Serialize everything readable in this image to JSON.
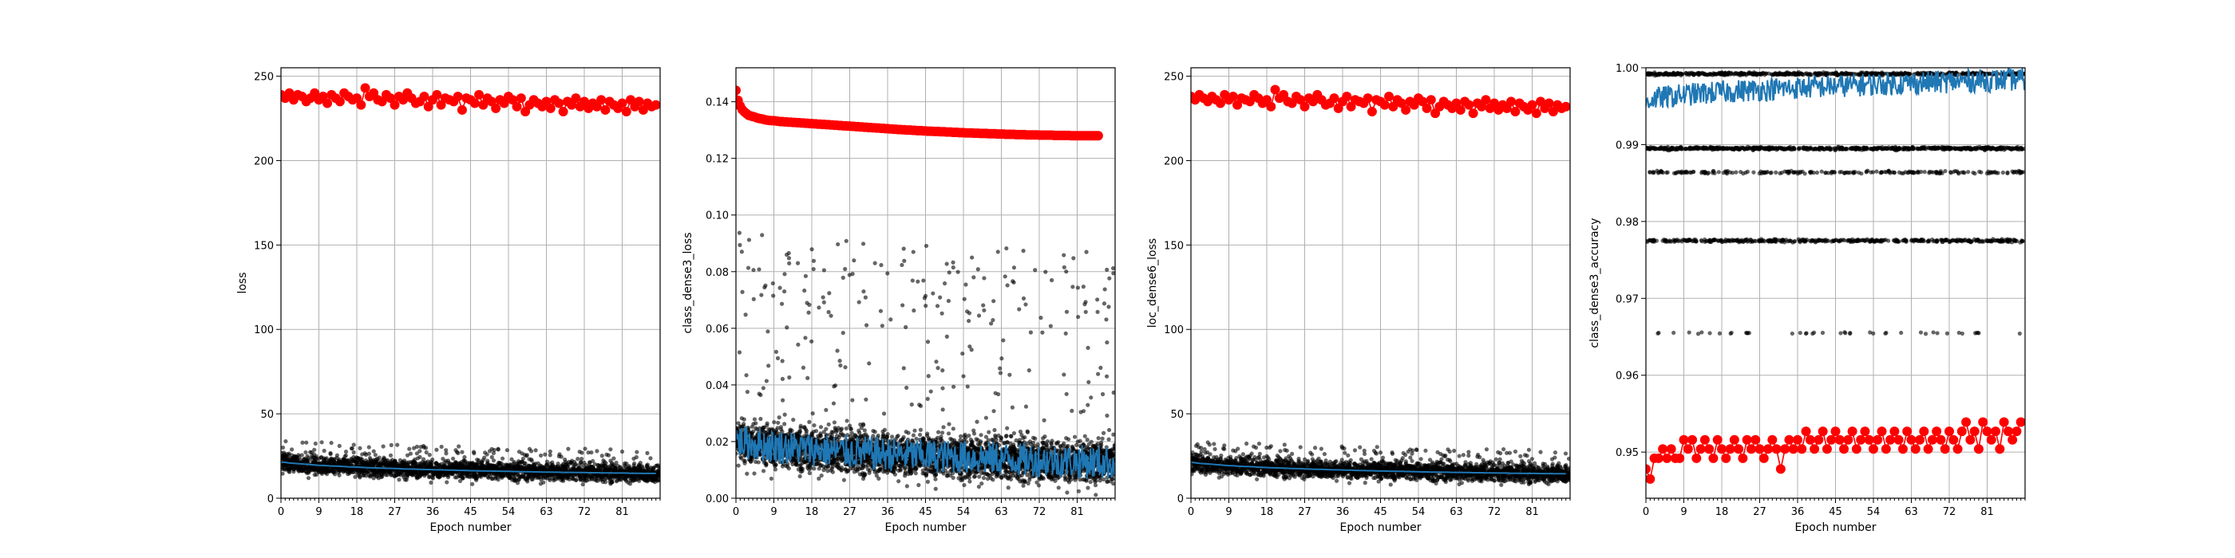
{
  "chart_data": [
    {
      "type": "scatter",
      "xlabel": "Epoch number",
      "ylabel": "loss",
      "xlim": [
        0,
        90
      ],
      "ylim": [
        0,
        255
      ],
      "xticks": [
        0,
        9,
        18,
        27,
        36,
        45,
        54,
        63,
        72,
        81
      ],
      "yticks": [
        0,
        50,
        100,
        150,
        200,
        250
      ],
      "grid": true,
      "series": [
        {
          "role": "validation",
          "color": "#ff0000",
          "style": "line-markers",
          "x_start": 0,
          "x_step": 1,
          "values": [
            239,
            237,
            240,
            236,
            239,
            238,
            235,
            237,
            240,
            236,
            238,
            234,
            239,
            237,
            235,
            240,
            238,
            236,
            237,
            233,
            243,
            238,
            240,
            236,
            235,
            239,
            237,
            233,
            238,
            236,
            240,
            237,
            234,
            235,
            238,
            232,
            236,
            239,
            233,
            237,
            236,
            235,
            238,
            230,
            237,
            236,
            234,
            239,
            233,
            237,
            235,
            231,
            236,
            234,
            238,
            236,
            232,
            237,
            229,
            233,
            236,
            234,
            232,
            235,
            231,
            236,
            234,
            229,
            235,
            233,
            237,
            232,
            235,
            231,
            234,
            232,
            236,
            230,
            235,
            233,
            231,
            234,
            229,
            236,
            232,
            235,
            230,
            234,
            232,
            233
          ]
        },
        {
          "role": "training-mean",
          "color": "#1f77b4",
          "style": "line",
          "x_start": 0,
          "x_step": 1,
          "values": [
            21.5,
            21.2,
            20.9,
            20.7,
            20.5,
            20.3,
            20.1,
            19.9,
            19.7,
            19.5,
            19.4,
            19.2,
            19.1,
            19.0,
            18.9,
            18.8,
            18.6,
            18.5,
            18.4,
            18.3,
            18.2,
            18.1,
            18.0,
            17.9,
            17.8,
            17.7,
            17.7,
            17.6,
            17.5,
            17.4,
            17.3,
            17.3,
            17.2,
            17.1,
            17.0,
            17.0,
            16.9,
            16.8,
            16.8,
            16.7,
            16.6,
            16.6,
            16.5,
            16.5,
            16.4,
            16.3,
            16.3,
            16.2,
            16.2,
            16.1,
            16.1,
            16.0,
            16.0,
            15.9,
            15.9,
            15.8,
            15.8,
            15.7,
            15.7,
            15.7,
            15.6,
            15.6,
            15.5,
            15.5,
            15.5,
            15.4,
            15.4,
            15.3,
            15.3,
            15.3,
            15.2,
            15.2,
            15.2,
            15.1,
            15.1,
            15.1,
            15.0,
            15.0,
            15.0,
            14.9,
            14.9,
            14.9,
            14.9,
            14.8,
            14.8,
            14.8,
            14.7,
            14.7,
            14.7,
            14.7
          ]
        },
        {
          "role": "training-batches",
          "color": "#000000",
          "style": "scatter",
          "center": [
            21.5,
            14.7
          ],
          "spread": 6.5,
          "outliers_up": 14,
          "points_per_epoch": 30
        }
      ]
    },
    {
      "type": "scatter",
      "xlabel": "Epoch number",
      "ylabel": "class_dense3_loss",
      "xlim": [
        0,
        90
      ],
      "ylim": [
        0,
        0.152
      ],
      "xticks": [
        0,
        9,
        18,
        27,
        36,
        45,
        54,
        63,
        72,
        81
      ],
      "yticks": [
        0.0,
        0.02,
        0.04,
        0.06,
        0.08,
        0.1,
        0.12,
        0.14
      ],
      "ytick_labels": [
        "0.00",
        "0.02",
        "0.04",
        "0.06",
        "0.08",
        "0.10",
        "0.12",
        "0.14"
      ],
      "grid": true,
      "series": [
        {
          "role": "validation",
          "color": "#ff0000",
          "style": "line-markers",
          "x_start": 0,
          "x_step": 0.5,
          "values": [
            0.144,
            0.1405,
            0.1385,
            0.1372,
            0.1364,
            0.1358,
            0.1352,
            0.135,
            0.1348,
            0.1346,
            0.1343,
            0.1341,
            0.134,
            0.1338,
            0.1336,
            0.1335,
            0.1334,
            0.1333,
            0.1333,
            0.1332,
            0.1331,
            0.133,
            0.133,
            0.1329,
            0.1329,
            0.1328,
            0.1328,
            0.1327,
            0.1327,
            0.1326,
            0.1326,
            0.1325,
            0.1325,
            0.1324,
            0.1324,
            0.1323,
            0.1323,
            0.1322,
            0.1322,
            0.1321,
            0.1321,
            0.132,
            0.132,
            0.1319,
            0.1319,
            0.1318,
            0.1318,
            0.1317,
            0.1317,
            0.1316,
            0.1316,
            0.1315,
            0.1315,
            0.1314,
            0.1314,
            0.1313,
            0.1313,
            0.1312,
            0.1312,
            0.1311,
            0.1311,
            0.131,
            0.131,
            0.1309,
            0.1309,
            0.1308,
            0.1308,
            0.1307,
            0.1307,
            0.1306,
            0.1306,
            0.1305,
            0.1305,
            0.1304,
            0.1304,
            0.1303,
            0.1303,
            0.1302,
            0.1302,
            0.1301,
            0.1301,
            0.13,
            0.13,
            0.13,
            0.1299,
            0.1299,
            0.1298,
            0.1298,
            0.1298,
            0.1297,
            0.1297,
            0.1296,
            0.1296,
            0.1296,
            0.1295,
            0.1295,
            0.1295,
            0.1294,
            0.1294,
            0.1294,
            0.1293,
            0.1293,
            0.1293,
            0.1292,
            0.1292,
            0.1292,
            0.1291,
            0.1291,
            0.1291,
            0.129,
            0.129,
            0.129,
            0.129,
            0.1289,
            0.1289,
            0.1289,
            0.1288,
            0.1288,
            0.1288,
            0.1288,
            0.1287,
            0.1287,
            0.1287,
            0.1287,
            0.1286,
            0.1286,
            0.1286,
            0.1286,
            0.1285,
            0.1285,
            0.1285,
            0.1285,
            0.1285,
            0.1284,
            0.1284,
            0.1284,
            0.1284,
            0.1284,
            0.1283,
            0.1283,
            0.1283,
            0.1283,
            0.1283,
            0.1283,
            0.1282,
            0.1282,
            0.1282,
            0.1282,
            0.1282,
            0.1282,
            0.1282,
            0.1281,
            0.1281,
            0.1281,
            0.1281,
            0.1281,
            0.1281,
            0.1281,
            0.1281,
            0.128,
            0.128,
            0.128,
            0.128,
            0.128,
            0.128,
            0.128,
            0.128,
            0.128,
            0.128,
            0.128,
            0.128,
            0.128,
            0.128
          ]
        },
        {
          "role": "training-mean",
          "color": "#1f77b4",
          "style": "jagged-line",
          "x_start": 0,
          "x_step": 0.5,
          "start": 0.021,
          "end": 0.0125,
          "oscillation": 0.006
        },
        {
          "role": "training-batches",
          "color": "#000000",
          "style": "scatter",
          "center": [
            0.021,
            0.0125
          ],
          "spread": 0.009,
          "outliers_up": 0.075,
          "points_per_epoch": 45
        }
      ]
    },
    {
      "type": "scatter",
      "xlabel": "Epoch number",
      "ylabel": "loc_dense6_loss",
      "xlim": [
        0,
        90
      ],
      "ylim": [
        0,
        255
      ],
      "xticks": [
        0,
        9,
        18,
        27,
        36,
        45,
        54,
        63,
        72,
        81
      ],
      "yticks": [
        0,
        50,
        100,
        150,
        200,
        250
      ],
      "grid": true,
      "series": [
        {
          "role": "validation",
          "color": "#ff0000",
          "style": "line-markers",
          "x_start": 0,
          "x_step": 1,
          "values": [
            238,
            236,
            239,
            237,
            235,
            238,
            236,
            234,
            239,
            236,
            238,
            233,
            237,
            236,
            235,
            239,
            237,
            234,
            236,
            232,
            242,
            237,
            239,
            235,
            234,
            238,
            236,
            232,
            237,
            235,
            239,
            236,
            233,
            234,
            237,
            231,
            235,
            238,
            232,
            236,
            235,
            234,
            237,
            229,
            236,
            235,
            233,
            238,
            232,
            236,
            234,
            230,
            235,
            233,
            237,
            235,
            231,
            236,
            228,
            232,
            235,
            233,
            231,
            234,
            230,
            235,
            233,
            228,
            234,
            232,
            236,
            231,
            234,
            230,
            233,
            231,
            235,
            229,
            234,
            232,
            230,
            233,
            228,
            235,
            231,
            234,
            229,
            233,
            231,
            232
          ]
        },
        {
          "role": "training-mean",
          "color": "#1f77b4",
          "style": "line",
          "x_start": 0,
          "x_step": 1,
          "values": [
            21.3,
            21.0,
            20.7,
            20.5,
            20.3,
            20.1,
            19.9,
            19.7,
            19.5,
            19.3,
            19.2,
            19.0,
            18.9,
            18.8,
            18.7,
            18.6,
            18.4,
            18.3,
            18.2,
            18.1,
            18.0,
            17.9,
            17.8,
            17.7,
            17.6,
            17.5,
            17.5,
            17.4,
            17.3,
            17.2,
            17.1,
            17.1,
            17.0,
            16.9,
            16.8,
            16.8,
            16.7,
            16.6,
            16.6,
            16.5,
            16.4,
            16.4,
            16.3,
            16.3,
            16.2,
            16.1,
            16.1,
            16.0,
            16.0,
            15.9,
            15.9,
            15.8,
            15.8,
            15.7,
            15.7,
            15.6,
            15.6,
            15.5,
            15.5,
            15.5,
            15.4,
            15.4,
            15.3,
            15.3,
            15.3,
            15.2,
            15.2,
            15.1,
            15.1,
            15.1,
            15.0,
            15.0,
            15.0,
            14.9,
            14.9,
            14.9,
            14.8,
            14.8,
            14.8,
            14.7,
            14.7,
            14.7,
            14.7,
            14.6,
            14.6,
            14.6,
            14.5,
            14.5,
            14.5,
            14.5
          ]
        },
        {
          "role": "training-batches",
          "color": "#000000",
          "style": "scatter",
          "center": [
            21.3,
            14.5
          ],
          "spread": 6.5,
          "outliers_up": 14,
          "points_per_epoch": 30
        }
      ]
    },
    {
      "type": "scatter",
      "xlabel": "Epoch number",
      "ylabel": "class_dense3_accuracy",
      "xlim": [
        0,
        90
      ],
      "ylim": [
        0.944,
        1.0
      ],
      "xticks": [
        0,
        9,
        18,
        27,
        36,
        45,
        54,
        63,
        72,
        81
      ],
      "yticks": [
        0.95,
        0.96,
        0.97,
        0.98,
        0.99,
        1.0
      ],
      "ytick_labels": [
        "0.95",
        "0.96",
        "0.97",
        "0.98",
        "0.99",
        "1.00"
      ],
      "grid": true,
      "series": [
        {
          "role": "validation",
          "color": "#ff0000",
          "style": "line-markers",
          "x_start": 0,
          "x_step": 1,
          "values": [
            0.9478,
            0.9465,
            0.9492,
            0.9492,
            0.9504,
            0.9492,
            0.9504,
            0.9492,
            0.9492,
            0.9516,
            0.9504,
            0.9516,
            0.9492,
            0.9504,
            0.9516,
            0.9504,
            0.9492,
            0.9516,
            0.9504,
            0.9492,
            0.9504,
            0.9516,
            0.9504,
            0.9492,
            0.9516,
            0.9504,
            0.9516,
            0.9504,
            0.9492,
            0.9504,
            0.9516,
            0.9504,
            0.9478,
            0.9504,
            0.9516,
            0.9504,
            0.9516,
            0.9504,
            0.9527,
            0.9516,
            0.9504,
            0.9516,
            0.9527,
            0.9504,
            0.9516,
            0.9527,
            0.9516,
            0.9504,
            0.9516,
            0.9527,
            0.9504,
            0.9516,
            0.9527,
            0.9516,
            0.9504,
            0.9516,
            0.9527,
            0.9504,
            0.9516,
            0.9527,
            0.9516,
            0.9504,
            0.9527,
            0.9516,
            0.9504,
            0.9516,
            0.9527,
            0.9504,
            0.9516,
            0.9527,
            0.9516,
            0.9504,
            0.9527,
            0.9516,
            0.9504,
            0.9527,
            0.9539,
            0.9516,
            0.9527,
            0.9504,
            0.9539,
            0.9527,
            0.9516,
            0.9527,
            0.9504,
            0.9539,
            0.9527,
            0.9516,
            0.9527,
            0.9539
          ]
        },
        {
          "role": "training-mean",
          "color": "#1f77b4",
          "style": "jagged-line",
          "x_start": 0,
          "x_step": 0.5,
          "start": 0.9955,
          "end": 0.9985,
          "oscillation": 0.0015
        },
        {
          "role": "training-batches",
          "color": "#000000",
          "style": "scatter-bands",
          "bands": [
            0.9992,
            0.9895,
            0.9864,
            0.9775,
            0.9655
          ],
          "band_density": [
            1.0,
            1.0,
            0.35,
            0.6,
            0.05
          ],
          "points_per_epoch": 35
        }
      ]
    }
  ]
}
